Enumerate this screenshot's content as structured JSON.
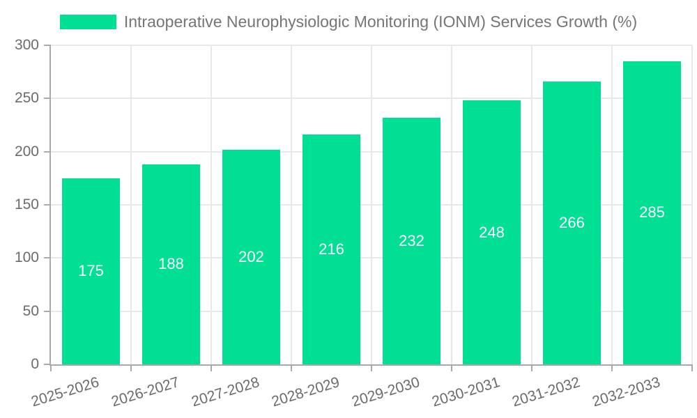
{
  "legend": {
    "label": "Intraoperative Neurophysiologic Monitoring (IONM) Services Growth (%)",
    "swatch_color": "#00df94"
  },
  "chart_data": {
    "type": "bar",
    "title": "Intraoperative Neurophysiologic Monitoring (IONM) Services Growth (%)",
    "categories": [
      "2025-2026",
      "2026-2027",
      "2027-2028",
      "2028-2029",
      "2029-2030",
      "2030-2031",
      "2031-2032",
      "2032-2033"
    ],
    "values": [
      175,
      188,
      202,
      216,
      232,
      248,
      266,
      285
    ],
    "value_labels": [
      "175",
      "188",
      "202",
      "216",
      "232",
      "248",
      "266",
      "285"
    ],
    "y_ticks": [
      0,
      50,
      100,
      150,
      200,
      250,
      300
    ],
    "y_tick_labels": [
      "0",
      "50",
      "100",
      "150",
      "200",
      "250",
      "300"
    ],
    "ylim": [
      0,
      300
    ],
    "xlabel": "",
    "ylabel": "",
    "grid": true,
    "legend_position": "top-center",
    "x_tick_rotation_deg": -17,
    "colors": {
      "bar": "#00df94",
      "value_label": "#ffffff",
      "axis_line": "#a9a9a9",
      "gridline": "#e8e8e8",
      "tick_label": "#6b6b6b",
      "legend_text": "#757575"
    }
  }
}
